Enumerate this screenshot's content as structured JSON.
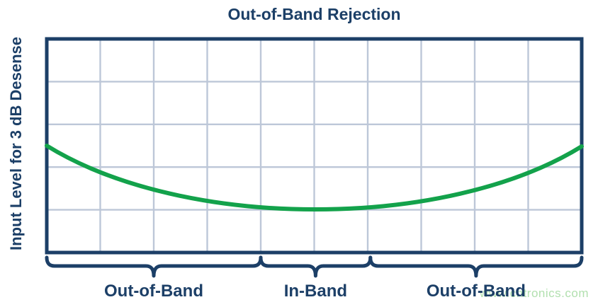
{
  "figure": {
    "title": "Out-of-Band Rejection",
    "y_axis_label": "Input Level for 3 dB Desense",
    "watermark": "www.cntronics.com"
  },
  "colors": {
    "navy": "#1c3f67",
    "curve_green": "#13a24b",
    "gridline": "#bdc7d8",
    "watermark_green": "#b2e0af",
    "background": "#ffffff"
  },
  "chart_data": {
    "type": "line",
    "title": "Out-of-Band Rejection",
    "xlabel": "",
    "ylabel": "Input Level for 3 dB Desense",
    "grid": {
      "cols": 10,
      "rows": 5,
      "visible": true
    },
    "axes_note": "qualitative axes, no numeric tick labels shown",
    "series": [
      {
        "name": "Input Level for 3 dB Desense",
        "color": "#13a24b",
        "shape": "bathtub curve: high at band edges, flat minimum in-band",
        "points_normalized": [
          [
            0.0,
            0.5
          ],
          [
            0.083,
            0.607
          ],
          [
            0.178,
            0.691
          ],
          [
            0.281,
            0.751
          ],
          [
            0.39,
            0.786
          ],
          [
            0.501,
            0.798
          ],
          [
            0.612,
            0.787
          ],
          [
            0.72,
            0.752
          ],
          [
            0.823,
            0.692
          ],
          [
            0.917,
            0.61
          ],
          [
            1.0,
            0.503
          ]
        ],
        "bezier_normalized": {
          "start": [
            0.0,
            0.5
          ],
          "c1": [
            0.257,
            0.897
          ],
          "c2": [
            0.746,
            0.897
          ],
          "end": [
            1.0,
            0.503
          ]
        }
      }
    ],
    "bands": [
      {
        "label": "Out-of-Band",
        "x_start": 0.0,
        "x_end": 0.4
      },
      {
        "label": "In-Band",
        "x_start": 0.4,
        "x_end": 0.605
      },
      {
        "label": "Out-of-Band",
        "x_start": 0.605,
        "x_end": 1.0
      }
    ],
    "legend": {
      "visible": false
    }
  }
}
